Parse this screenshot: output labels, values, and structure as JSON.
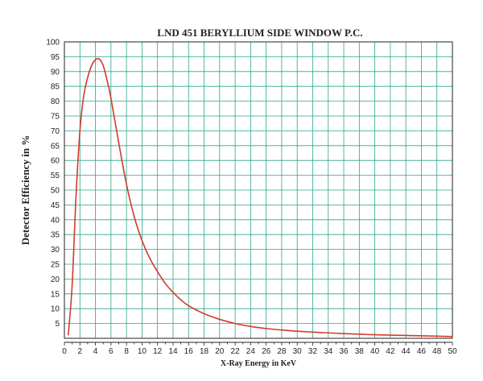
{
  "chart_data": {
    "type": "line",
    "title": "LND 451 BERYLLIUM SIDE WINDOW P.C.",
    "xlabel": "X-Ray Energy in KeV",
    "ylabel": "Detector Efficiency in %",
    "xlim": [
      0,
      50
    ],
    "ylim": [
      0,
      100
    ],
    "xticks": [
      0,
      2,
      4,
      6,
      8,
      10,
      12,
      14,
      16,
      18,
      20,
      22,
      24,
      26,
      28,
      30,
      32,
      34,
      36,
      38,
      40,
      42,
      44,
      46,
      48,
      50
    ],
    "yticks": [
      5,
      10,
      15,
      20,
      25,
      30,
      35,
      40,
      45,
      50,
      55,
      60,
      65,
      70,
      75,
      80,
      85,
      90,
      95,
      100
    ],
    "grid": true,
    "legend": "none",
    "colors": {
      "curve": "#d23a2c",
      "grid": "#2aa58c"
    },
    "series": [
      {
        "x": [
          0.5,
          1.0,
          1.5,
          2.0,
          2.5,
          3.0,
          3.5,
          4.0,
          4.5,
          5.0,
          5.5,
          6.0,
          7.0,
          8.0,
          9.0,
          10.0,
          11.0,
          12.0,
          13.0,
          14.0,
          15.0,
          16.0,
          18.0,
          20.0,
          22.0,
          24.0,
          26.0,
          28.0,
          30.0,
          32.0,
          35.0,
          38.0,
          40.0,
          45.0,
          50.0
        ],
        "values": [
          1,
          18,
          48,
          70,
          82,
          88,
          92,
          94,
          94.2,
          92,
          87,
          81,
          66,
          52,
          41,
          33,
          27,
          22.5,
          18.5,
          15.5,
          13,
          11,
          8.3,
          6.4,
          5.0,
          4.0,
          3.3,
          2.8,
          2.4,
          2.1,
          1.7,
          1.4,
          1.2,
          0.9,
          0.6
        ]
      }
    ]
  }
}
